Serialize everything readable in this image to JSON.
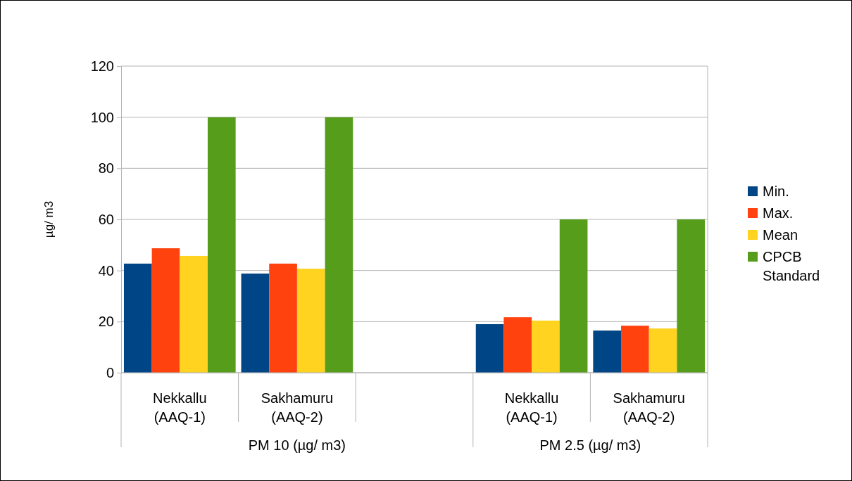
{
  "chart_data": {
    "type": "bar",
    "ylabel": "µg/ m3",
    "categories": [
      "Nekkallu (AAQ-1)",
      "Sakhamuru (AAQ-2)",
      null,
      "Nekkallu (AAQ-1)",
      "Sakhamuru (AAQ-2)"
    ],
    "series": [
      {
        "name": "Min.",
        "color": "#004586",
        "values": [
          42.7,
          38.8,
          null,
          19,
          16.5
        ]
      },
      {
        "name": "Max.",
        "color": "#ff420e",
        "values": [
          48.7,
          42.7,
          null,
          21.7,
          18.4
        ]
      },
      {
        "name": "Mean",
        "color": "#ffd320",
        "values": [
          45.7,
          40.7,
          null,
          20.4,
          17.3
        ]
      },
      {
        "name": "CPCB Standard",
        "color": "#579d1c",
        "values": [
          100,
          100,
          null,
          60,
          60
        ]
      }
    ],
    "ylim": [
      0,
      120
    ],
    "yticks": [
      0,
      20,
      40,
      60,
      80,
      100,
      120
    ],
    "grid": "y",
    "legend": "right",
    "annotations": [
      "PM 10 (µg/ m3)",
      "PM 2.5 (µg/ m3)"
    ]
  }
}
